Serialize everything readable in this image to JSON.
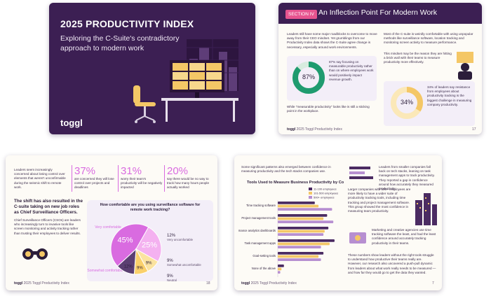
{
  "p1": {
    "title": "2025 PRODUCTIVITY INDEX",
    "subtitle": "Exploring the C-Suite's contradictory approach to modern work",
    "logo": "toggl"
  },
  "p2": {
    "section_tag": "SECTION IV",
    "title": "An Inflection Point For Modern Work",
    "intro": "Leaders still have some major roadblocks to overcome to move away from their CEO mindset. Yet grumblings from our Productivity Index data shows the C-Suite agree change is necessary, especially around work environments.",
    "stat1_value": "87%",
    "stat1_text": "87% say focusing on measurable productivity rather than on where employees work would positively impact revenue growth.",
    "quote_line": "While \"measurable productivity\" looks like is still a sticking point in the workplace.",
    "right_text": "Most of the C-suite is weirdly comfortable with using unpopular methods like surveillance software, location tracking and monitoring screen activity to measure performance.",
    "right_text2": "This mindset may be the reason they are hitting a brick wall with their teams to measure productivity more effectively.",
    "stat2_value": "34%",
    "stat2_text": "34% of leaders say resistance from employees about productivity tracking is the biggest challenge in measuring company productivity.",
    "footer_brand": "toggl",
    "footer_text": "2025 Toggl Productivity Index",
    "page_no": "17"
  },
  "p3": {
    "intro": "Leaders seem increasingly concerned about losing control over elements that weren't unconfirmable during the seismic shift to remote work.",
    "stats": [
      {
        "value": "37%",
        "text": "are concerned they will lose control over projects and deadlines"
      },
      {
        "value": "31%",
        "text": "worry their team's productivity will be negatively impacted"
      },
      {
        "value": "20%",
        "text": "say there would be no way to track how many hours people actually worked"
      }
    ],
    "heading": "The shift has also resulted in the C-suite taking on new job roles as Chief Surveillance Officers.",
    "body": "Chief Surveillance Officers (CSOs) are leaders who increasingly turn to invasive tools like screen monitoring and activity tracking rather than trusting their employees to deliver results.",
    "chart_title": "How comfortable are you using surveillance software for remote work tracking?",
    "footer_brand": "toggl",
    "footer_text": "2025 Toggl Productivity Index",
    "page_no": "18"
  },
  "p4": {
    "intro": "Some significant patterns also emerged between confidence in measuring productivity and the tech stacks companies use.",
    "right_top": "Leaders from smaller companies fall back on tech stacks, leaning on task management apps to track productivity. They reported a gap in confidence around how accurately they measured productivity.",
    "right_mid": "Larger companies with 500+ employees are more likely to have a wider suite of productivity tracking tools, including time tracking and project management software. This group showed the most confidence in measuring team productivity.",
    "right_low": "Marketing and creative agencies use time tracking software the least, and had the least confidence around accurately tracking productivity in their teams.",
    "bottom": "These numbers show leaders without the right tools struggle to understand how productive their teams really are. However, our research also uncovered a push-pull dynamic from leaders about what work really needs to be measured — and how far they would go to get the data they wanted.",
    "footer_brand": "toggl",
    "footer_text": "2025 Toggl Productivity Index",
    "page_no": "7"
  },
  "chart_data": [
    {
      "type": "pie",
      "title": "How comfortable are you using surveillance software for remote work tracking?",
      "categories": [
        "Very comfortable",
        "Somewhat comfortable",
        "Neutral",
        "Somewhat uncomfortable",
        "Very uncomfortable"
      ],
      "values": [
        45,
        25,
        9,
        9,
        12
      ],
      "colors": [
        "#d96be0",
        "#f4b1f0",
        "#fbe3a0",
        "#fad06b",
        "#5b3f72"
      ],
      "labels": [
        "45%",
        "25%",
        "9%",
        "9%",
        "12%"
      ]
    },
    {
      "type": "bar",
      "title": "Tools Used to Measure Business Productivity by Company Size",
      "categories": [
        "Time tracking software",
        "Project management tools",
        "Performance analytics dashboards",
        "Task management apps",
        "Goal-setting tools",
        "None of the above"
      ],
      "series": [
        {
          "name": "11-100 employees",
          "color": "#4b2b62",
          "values": [
            30,
            40,
            41,
            46,
            37,
            5
          ]
        },
        {
          "name": "101-500 employees",
          "color": "#f4c766",
          "values": [
            33,
            37,
            38,
            42,
            33,
            3
          ]
        },
        {
          "name": "500+ employees",
          "color": "#b78fd1",
          "values": [
            44,
            45,
            37,
            35,
            35,
            2
          ]
        }
      ],
      "xlim": [
        0,
        50
      ]
    }
  ]
}
